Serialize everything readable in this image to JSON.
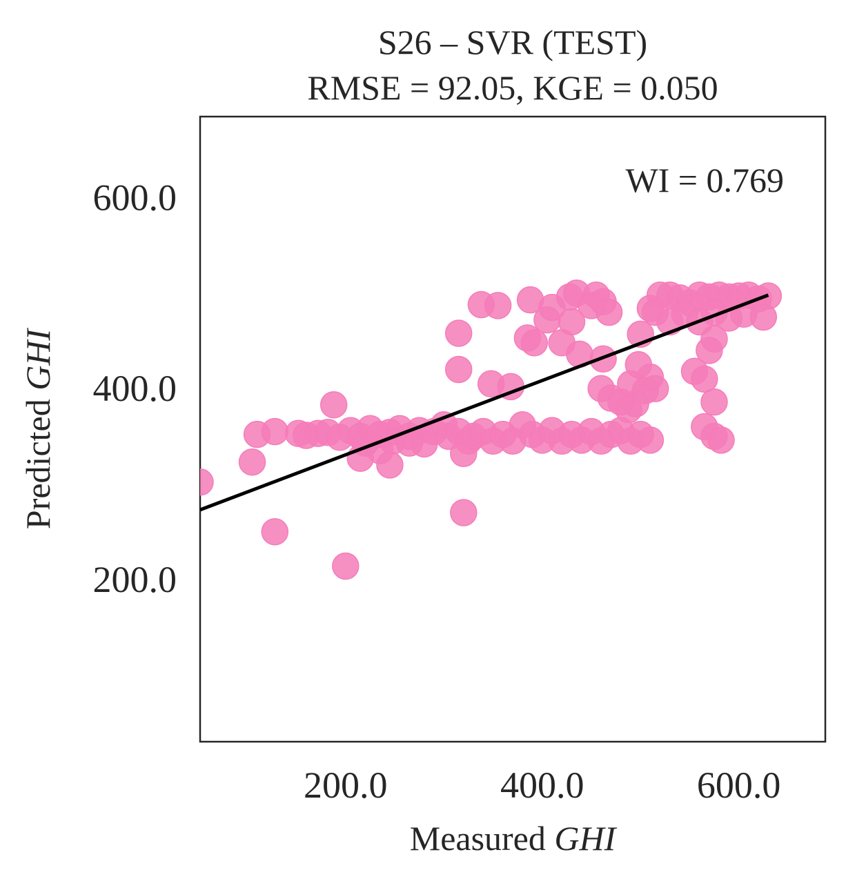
{
  "chart_data": {
    "type": "scatter",
    "title": "S26 – SVR (TEST)",
    "subtitle": "RMSE = 92.05, KGE = 0.050",
    "xlabel": {
      "prefix": "Measured ",
      "italic": "GHI"
    },
    "ylabel": {
      "prefix": "Predicted ",
      "italic": "GHI"
    },
    "xlim": [
      52,
      688
    ],
    "ylim": [
      30,
      685
    ],
    "xticks": [
      200,
      400,
      600
    ],
    "yticks": [
      200,
      400,
      600
    ],
    "xtick_labels": [
      "200.0",
      "400.0",
      "600.0"
    ],
    "ytick_labels": [
      "200.0",
      "400.0",
      "600.0"
    ],
    "annotation": "WI = 0.769",
    "grid": false,
    "point_color": "#f57cb9",
    "line_color": "#000000",
    "fit_line": {
      "x": [
        52,
        630
      ],
      "y": [
        273,
        498
      ]
    },
    "points": [
      [
        52,
        302
      ],
      [
        105,
        323
      ],
      [
        110,
        352
      ],
      [
        128,
        355
      ],
      [
        128,
        250
      ],
      [
        200,
        214
      ],
      [
        188,
        383
      ],
      [
        152,
        353
      ],
      [
        160,
        351
      ],
      [
        172,
        353
      ],
      [
        182,
        354
      ],
      [
        194,
        349
      ],
      [
        205,
        356
      ],
      [
        215,
        350
      ],
      [
        225,
        358
      ],
      [
        235,
        352
      ],
      [
        245,
        354
      ],
      [
        255,
        358
      ],
      [
        265,
        350
      ],
      [
        275,
        356
      ],
      [
        220,
        343
      ],
      [
        235,
        335
      ],
      [
        248,
        345
      ],
      [
        265,
        343
      ],
      [
        280,
        342
      ],
      [
        215,
        327
      ],
      [
        245,
        320
      ],
      [
        290,
        355
      ],
      [
        300,
        362
      ],
      [
        305,
        350
      ],
      [
        315,
        355
      ],
      [
        325,
        345
      ],
      [
        320,
        332
      ],
      [
        330,
        350
      ],
      [
        340,
        355
      ],
      [
        350,
        345
      ],
      [
        360,
        352
      ],
      [
        370,
        345
      ],
      [
        380,
        362
      ],
      [
        390,
        352
      ],
      [
        400,
        346
      ],
      [
        410,
        356
      ],
      [
        420,
        345
      ],
      [
        430,
        352
      ],
      [
        440,
        346
      ],
      [
        450,
        355
      ],
      [
        460,
        345
      ],
      [
        470,
        352
      ],
      [
        480,
        356
      ],
      [
        490,
        345
      ],
      [
        500,
        352
      ],
      [
        510,
        346
      ],
      [
        320,
        270
      ],
      [
        315,
        420
      ],
      [
        315,
        458
      ],
      [
        338,
        488
      ],
      [
        355,
        487
      ],
      [
        348,
        405
      ],
      [
        368,
        402
      ],
      [
        385,
        453
      ],
      [
        392,
        448
      ],
      [
        388,
        493
      ],
      [
        405,
        472
      ],
      [
        410,
        485
      ],
      [
        420,
        448
      ],
      [
        428,
        496
      ],
      [
        435,
        500
      ],
      [
        430,
        470
      ],
      [
        438,
        436
      ],
      [
        450,
        487
      ],
      [
        455,
        498
      ],
      [
        462,
        491
      ],
      [
        462,
        431
      ],
      [
        468,
        480
      ],
      [
        460,
        400
      ],
      [
        470,
        390
      ],
      [
        480,
        386
      ],
      [
        488,
        378
      ],
      [
        495,
        384
      ],
      [
        490,
        405
      ],
      [
        498,
        425
      ],
      [
        505,
        398
      ],
      [
        510,
        412
      ],
      [
        515,
        400
      ],
      [
        500,
        457
      ],
      [
        510,
        484
      ],
      [
        520,
        498
      ],
      [
        530,
        498
      ],
      [
        540,
        495
      ],
      [
        550,
        490
      ],
      [
        560,
        498
      ],
      [
        570,
        496
      ],
      [
        580,
        498
      ],
      [
        590,
        496
      ],
      [
        600,
        497
      ],
      [
        610,
        498
      ],
      [
        620,
        494
      ],
      [
        630,
        497
      ],
      [
        625,
        475
      ],
      [
        515,
        480
      ],
      [
        530,
        470
      ],
      [
        545,
        478
      ],
      [
        560,
        470
      ],
      [
        575,
        480
      ],
      [
        590,
        474
      ],
      [
        605,
        478
      ],
      [
        555,
        418
      ],
      [
        565,
        410
      ],
      [
        575,
        386
      ],
      [
        565,
        360
      ],
      [
        575,
        350
      ],
      [
        582,
        346
      ],
      [
        570,
        440
      ],
      [
        575,
        452
      ]
    ]
  }
}
